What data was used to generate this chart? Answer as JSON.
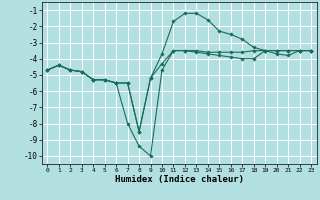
{
  "xlabel": "Humidex (Indice chaleur)",
  "bg_color": "#b2e0e0",
  "grid_color": "#ffffff",
  "line_color": "#1a6b5a",
  "xlim": [
    -0.5,
    23.5
  ],
  "ylim": [
    -10.5,
    -0.5
  ],
  "yticks": [
    -10,
    -9,
    -8,
    -7,
    -6,
    -5,
    -4,
    -3,
    -2,
    -1
  ],
  "xticks": [
    0,
    1,
    2,
    3,
    4,
    5,
    6,
    7,
    8,
    9,
    10,
    11,
    12,
    13,
    14,
    15,
    16,
    17,
    18,
    19,
    20,
    21,
    22,
    23
  ],
  "series": [
    {
      "x": [
        0,
        1,
        2,
        3,
        4,
        5,
        6,
        7,
        8,
        9,
        10,
        11,
        12,
        13,
        14,
        15,
        16,
        17,
        18,
        19,
        20,
        21,
        22,
        23
      ],
      "y": [
        -4.7,
        -4.4,
        -4.7,
        -4.8,
        -5.3,
        -5.3,
        -5.5,
        -8.0,
        -9.4,
        -10.0,
        -4.7,
        -3.5,
        -3.5,
        -3.6,
        -3.7,
        -3.8,
        -3.9,
        -4.0,
        -4.0,
        -3.5,
        -3.5,
        -3.5,
        -3.5,
        -3.5
      ],
      "marker": "D",
      "markersize": 1.8
    },
    {
      "x": [
        0,
        1,
        2,
        3,
        4,
        5,
        6,
        7,
        8,
        9,
        10,
        11,
        12,
        13,
        14,
        15,
        16,
        17,
        18,
        19,
        20,
        21,
        22,
        23
      ],
      "y": [
        -4.7,
        -4.4,
        -4.7,
        -4.8,
        -5.3,
        -5.3,
        -5.5,
        -5.5,
        -8.5,
        -5.2,
        -3.7,
        -1.7,
        -1.2,
        -1.2,
        -1.6,
        -2.3,
        -2.5,
        -2.8,
        -3.3,
        -3.5,
        -3.7,
        -3.8,
        -3.5,
        -3.5
      ],
      "marker": "D",
      "markersize": 1.8
    },
    {
      "x": [
        0,
        1,
        2,
        3,
        4,
        5,
        6,
        7,
        8,
        9,
        10,
        11,
        12,
        13,
        14,
        15,
        16,
        17,
        18,
        19,
        20,
        21,
        22,
        23
      ],
      "y": [
        -4.7,
        -4.4,
        -4.7,
        -4.8,
        -5.3,
        -5.3,
        -5.5,
        -5.5,
        -8.5,
        -5.2,
        -4.3,
        -3.5,
        -3.5,
        -3.5,
        -3.6,
        -3.6,
        -3.6,
        -3.6,
        -3.5,
        -3.5,
        -3.5,
        -3.5,
        -3.5,
        -3.5
      ],
      "marker": "D",
      "markersize": 1.8
    }
  ]
}
